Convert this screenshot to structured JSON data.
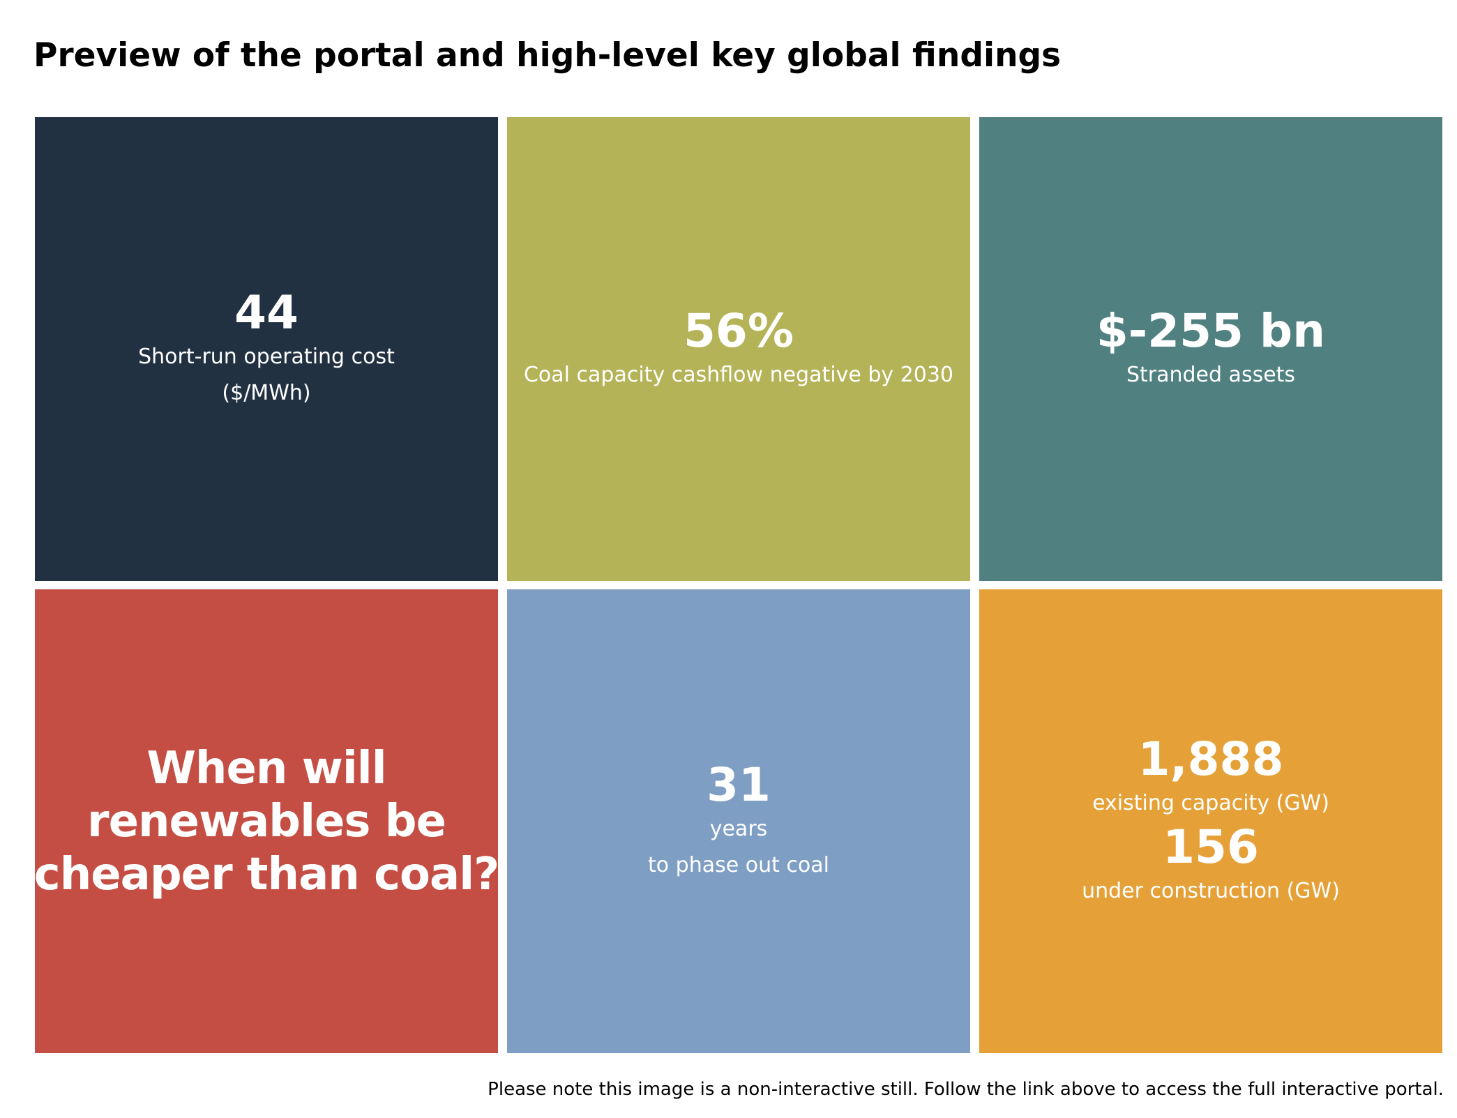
{
  "title": "Preview of the portal and high-level key global findings",
  "tiles": {
    "operating_cost": {
      "color": "#213142",
      "value": "44",
      "label_line1": "Short-run operating cost",
      "label_line2": "($/MWh)"
    },
    "cashflow_negative": {
      "color": "#b4b358",
      "value": "56%",
      "label": "Coal capacity cashflow negative by 2030"
    },
    "stranded_assets": {
      "color": "#508080",
      "value": "$-255 bn",
      "label": "Stranded assets"
    },
    "renewables_question": {
      "color": "#c54e44",
      "line1": "When will",
      "line2": "renewables be",
      "line3": "cheaper than coal?"
    },
    "phase_out": {
      "color": "#7f9ec4",
      "value": "31",
      "label_line1": "years",
      "label_line2": "to phase out coal"
    },
    "capacity": {
      "color": "#e5a138",
      "existing_value": "1,888",
      "existing_label": "existing capacity (GW)",
      "construction_value": "156",
      "construction_label": "under construction (GW)"
    }
  },
  "footer_note": "Please note this image is a non-interactive still. Follow the link above to access the full interactive portal."
}
